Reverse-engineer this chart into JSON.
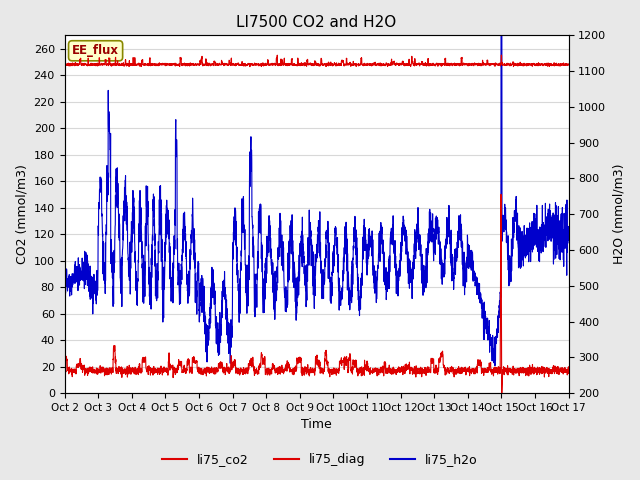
{
  "title": "LI7500 CO2 and H2O",
  "xlabel": "Time",
  "ylabel_left": "CO2 (mmol/m3)",
  "ylabel_right": "H2O (mmol/m3)",
  "ylim_left": [
    0,
    270
  ],
  "ylim_right": [
    200,
    1200
  ],
  "background_color": "#e8e8e8",
  "plot_bg_color": "#ffffff",
  "grid_color": "#d8d8d8",
  "annotation_text": "EE_flux",
  "annotation_bg": "#ffffcc",
  "annotation_border": "#888800",
  "co2_color": "#dd0000",
  "diag_color": "#dd0000",
  "h2o_color": "#0000cc",
  "legend_co2_label": "li75_co2",
  "legend_diag_label": "li75_diag",
  "legend_h2o_label": "li75_h2o",
  "tick_labels": [
    "Oct 2",
    "Oct 3",
    "Oct 4",
    "Oct 5",
    "Oct 6",
    "Oct 7",
    "Oct 8",
    "Oct 9",
    "Oct 10",
    "Oct 11",
    "Oct 12",
    "Oct 13",
    "Oct 14",
    "Oct 15",
    "Oct 16",
    "Oct 17"
  ],
  "n_points": 3000,
  "seed": 7
}
